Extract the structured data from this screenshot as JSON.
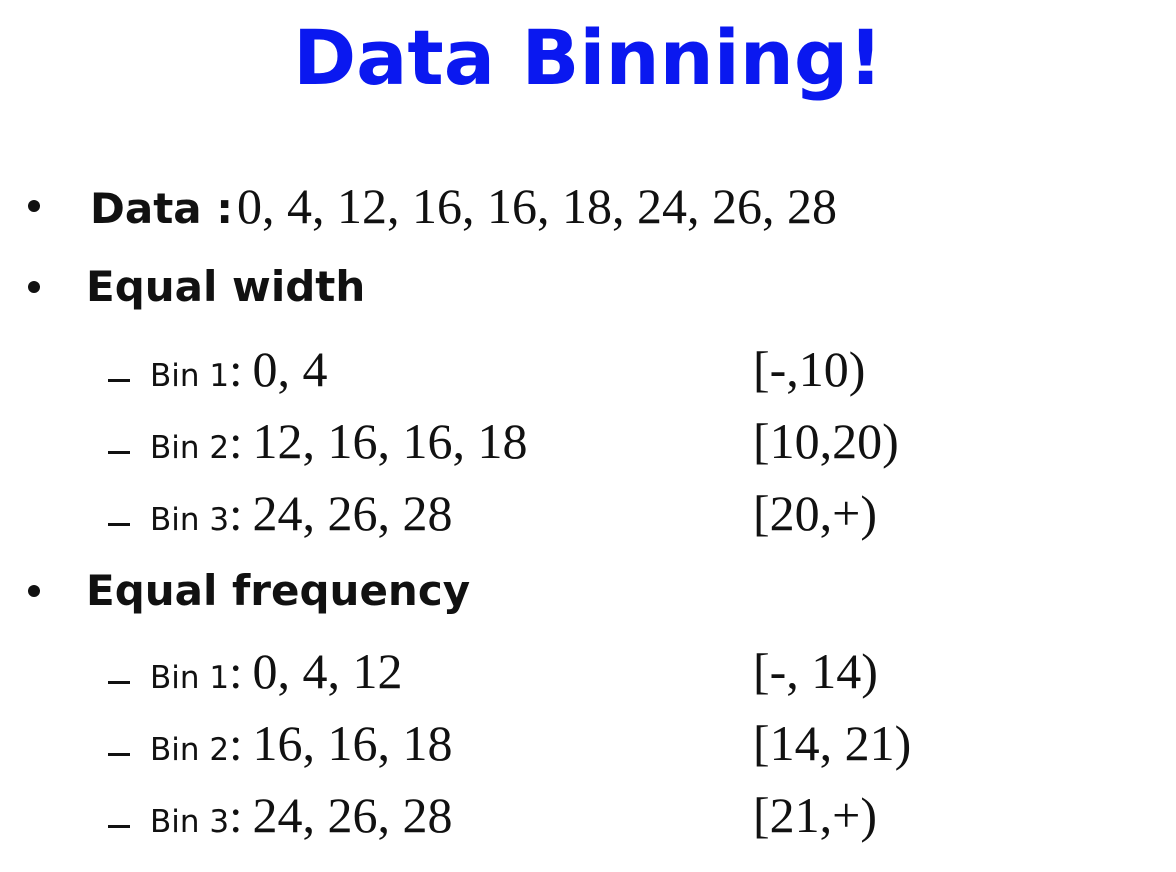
{
  "title": "Data Binning!",
  "data_line": {
    "label": "Data :",
    "values": "0, 4, 12, 16, 16, 18, 24, 26, 28"
  },
  "equal_width": {
    "heading": "Equal width",
    "bins": [
      {
        "label": "Bin 1",
        "values": "0, 4",
        "interval": "[-,10)"
      },
      {
        "label": "Bin 2",
        "values": "12, 16, 16, 18",
        "interval": "[10,20)"
      },
      {
        "label": "Bin 3",
        "values": "24, 26, 28",
        "interval": "[20,+)"
      }
    ]
  },
  "equal_frequency": {
    "heading": "Equal frequency",
    "bins": [
      {
        "label": "Bin 1",
        "values": "0, 4, 12",
        "interval": "[-, 14)"
      },
      {
        "label": "Bin 2",
        "values": "16, 16, 18",
        "interval": "[14, 21)"
      },
      {
        "label": "Bin 3",
        "values": "24, 26, 28",
        "interval": "[21,+)"
      }
    ]
  },
  "colors": {
    "title": "#0a18f0",
    "text": "#111111",
    "background": "#ffffff"
  }
}
